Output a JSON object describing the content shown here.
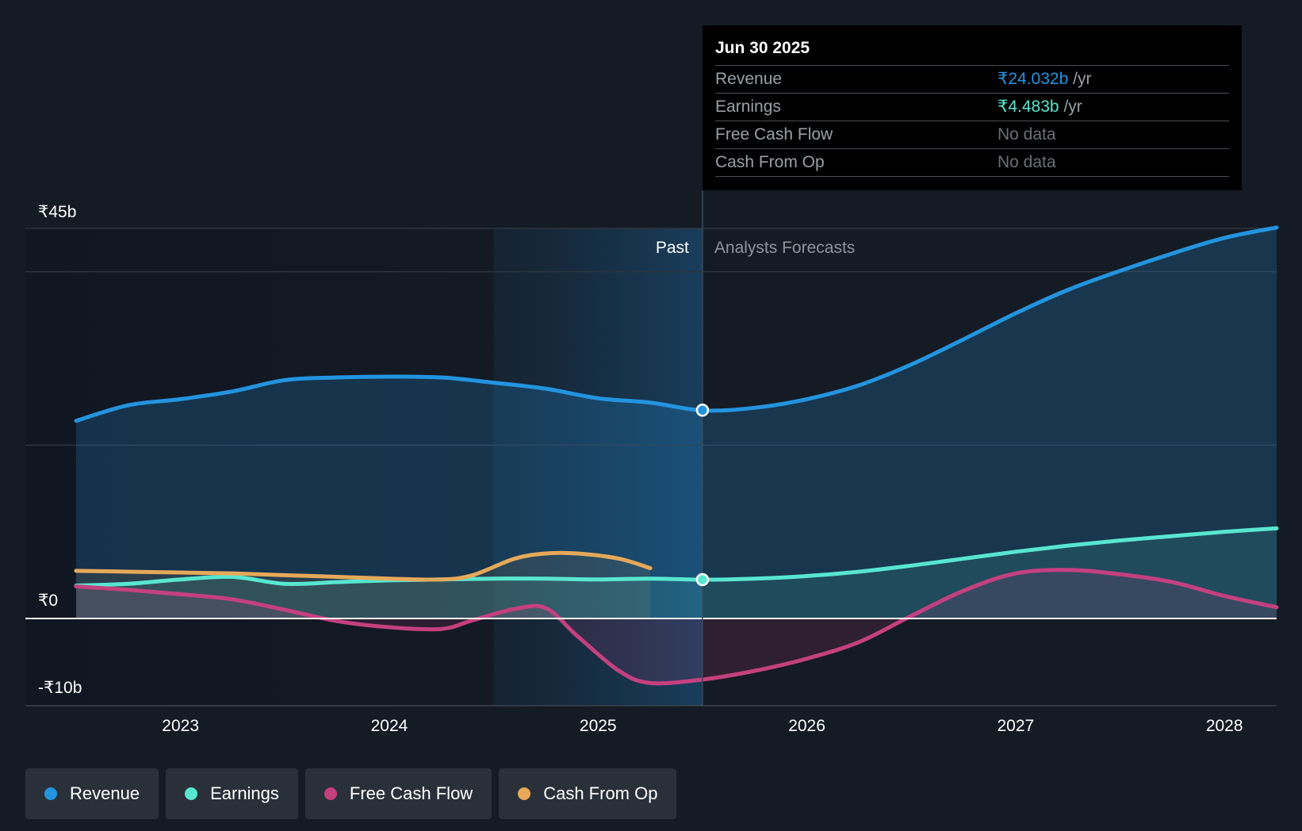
{
  "tooltip": {
    "date": "Jun 30 2025",
    "rows": [
      {
        "label": "Revenue",
        "value": "₹24.032b",
        "unit": "/yr",
        "color": "#2394df"
      },
      {
        "label": "Earnings",
        "value": "₹4.483b",
        "unit": "/yr",
        "color": "#58e6d0"
      },
      {
        "label": "Free Cash Flow",
        "value": "No data",
        "unit": "",
        "color": ""
      },
      {
        "label": "Cash From Op",
        "value": "No data",
        "unit": "",
        "color": ""
      }
    ]
  },
  "legend": [
    {
      "label": "Revenue",
      "color": "#2394df"
    },
    {
      "label": "Earnings",
      "color": "#58e6d0"
    },
    {
      "label": "Free Cash Flow",
      "color": "#c5407f"
    },
    {
      "label": "Cash From Op",
      "color": "#e6a95a"
    }
  ],
  "chart_data": {
    "type": "line",
    "title": "",
    "y_tick_labels": [
      "₹45b",
      "₹0",
      "-₹10b"
    ],
    "y_ticks": [
      45,
      0,
      -10
    ],
    "ylim": [
      -10,
      45
    ],
    "xlim": [
      2022.5,
      2028.25
    ],
    "x_tick_labels": [
      "2023",
      "2024",
      "2025",
      "2026",
      "2027",
      "2028"
    ],
    "x_ticks": [
      2023,
      2024,
      2025,
      2026,
      2027,
      2028
    ],
    "past_label": "Past",
    "forecast_label": "Analysts Forecasts",
    "past_divider_x": 2025.5,
    "highlight_start_x": 2024.5,
    "series": [
      {
        "name": "Revenue",
        "color": "#2394df",
        "x": [
          2022.5,
          2022.75,
          2023.0,
          2023.25,
          2023.5,
          2023.75,
          2024.0,
          2024.25,
          2024.5,
          2024.75,
          2025.0,
          2025.25,
          2025.5,
          2025.75,
          2026.0,
          2026.25,
          2026.5,
          2026.75,
          2027.0,
          2027.25,
          2027.5,
          2027.75,
          2028.0,
          2028.25
        ],
        "y": [
          22.8,
          24.6,
          25.3,
          26.2,
          27.5,
          27.8,
          27.9,
          27.8,
          27.2,
          26.5,
          25.4,
          24.9,
          24.0,
          24.3,
          25.3,
          26.9,
          29.3,
          32.2,
          35.2,
          37.9,
          40.1,
          42.1,
          43.9,
          45.1
        ]
      },
      {
        "name": "Earnings",
        "color": "#58e6d0",
        "x": [
          2022.5,
          2022.75,
          2023.0,
          2023.25,
          2023.5,
          2023.75,
          2024.0,
          2024.25,
          2024.5,
          2024.75,
          2025.0,
          2025.25,
          2025.5,
          2025.75,
          2026.0,
          2026.25,
          2026.5,
          2026.75,
          2027.0,
          2027.25,
          2027.5,
          2027.75,
          2028.0,
          2028.25
        ],
        "y": [
          3.8,
          4.0,
          4.5,
          4.8,
          4.0,
          4.2,
          4.4,
          4.5,
          4.6,
          4.6,
          4.5,
          4.6,
          4.48,
          4.6,
          4.9,
          5.4,
          6.1,
          6.9,
          7.7,
          8.4,
          9.0,
          9.5,
          10.0,
          10.4
        ]
      },
      {
        "name": "Free Cash Flow",
        "color": "#c5407f",
        "x": [
          2022.5,
          2022.75,
          2023.0,
          2023.25,
          2023.5,
          2023.75,
          2024.0,
          2024.25,
          2024.4,
          2024.6,
          2024.75,
          2024.9,
          2025.1,
          2025.25,
          2025.5,
          2025.75,
          2026.0,
          2026.25,
          2026.5,
          2026.75,
          2027.0,
          2027.25,
          2027.5,
          2027.75,
          2028.0,
          2028.25
        ],
        "y": [
          3.7,
          3.3,
          2.8,
          2.2,
          1.0,
          -0.3,
          -1.0,
          -1.2,
          -0.2,
          1.1,
          1.2,
          -2.0,
          -6.0,
          -7.4,
          -7.0,
          -6.0,
          -4.6,
          -2.7,
          0.3,
          3.2,
          5.2,
          5.6,
          5.1,
          4.2,
          2.6,
          1.3
        ]
      },
      {
        "name": "Cash From Op",
        "color": "#e6a95a",
        "x": [
          2022.5,
          2022.75,
          2023.0,
          2023.25,
          2023.5,
          2023.75,
          2024.0,
          2024.25,
          2024.4,
          2024.6,
          2024.75,
          2024.9,
          2025.1,
          2025.25
        ],
        "y": [
          5.5,
          5.4,
          5.3,
          5.2,
          5.0,
          4.8,
          4.6,
          4.5,
          5.0,
          6.9,
          7.5,
          7.5,
          6.9,
          5.8
        ]
      }
    ],
    "highlight_points": [
      {
        "series": "Revenue",
        "x": 2025.5,
        "y": 24.032
      },
      {
        "series": "Earnings",
        "x": 2025.5,
        "y": 4.483
      }
    ]
  }
}
